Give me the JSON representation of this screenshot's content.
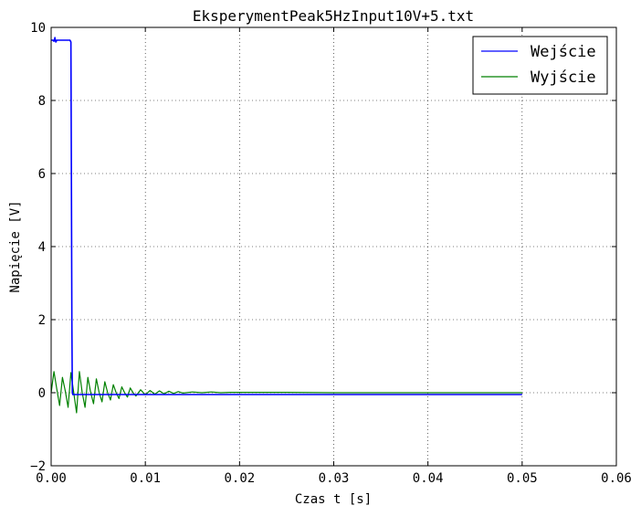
{
  "chart_data": {
    "type": "line",
    "title": "EksperymentPeak5HzInput10V+5.txt",
    "xlabel": "Czas t [s]",
    "ylabel": "Napięcie [V]",
    "xlim": [
      0,
      0.06
    ],
    "ylim": [
      -2,
      10
    ],
    "xticks": [
      "0.00",
      "0.01",
      "0.02",
      "0.03",
      "0.04",
      "0.05",
      "0.06"
    ],
    "yticks": [
      "−2",
      "0",
      "2",
      "4",
      "6",
      "8",
      "10"
    ],
    "grid": true,
    "legend_position": "top-right",
    "series": [
      {
        "name": "Wejście",
        "color": "#0000ff",
        "x": [
          0,
          0.0002,
          0.0003,
          0.0004,
          0.00045,
          0.0005,
          0.0006,
          0.0008,
          0.001,
          0.0015,
          0.002,
          0.0021,
          0.00215,
          0.0022,
          0.00225,
          0.0023,
          0.0025,
          0.01,
          0.02,
          0.03,
          0.04,
          0.05
        ],
        "y": [
          9.65,
          9.65,
          9.62,
          9.72,
          9.65,
          9.6,
          9.65,
          9.65,
          9.65,
          9.65,
          9.65,
          9.6,
          6.0,
          2.0,
          0.0,
          -0.05,
          -0.05,
          -0.05,
          -0.05,
          -0.05,
          -0.05,
          -0.05
        ]
      },
      {
        "name": "Wyjście",
        "color": "#008000",
        "x": [
          0,
          0.0003,
          0.0006,
          0.0009,
          0.0012,
          0.0015,
          0.0018,
          0.0021,
          0.0024,
          0.0027,
          0.003,
          0.0033,
          0.0036,
          0.0039,
          0.0042,
          0.0045,
          0.0048,
          0.0051,
          0.0054,
          0.0057,
          0.006,
          0.0063,
          0.0066,
          0.0069,
          0.0072,
          0.0075,
          0.0078,
          0.0081,
          0.0084,
          0.0087,
          0.009,
          0.0095,
          0.01,
          0.0105,
          0.011,
          0.0115,
          0.012,
          0.0125,
          0.013,
          0.0135,
          0.014,
          0.015,
          0.016,
          0.017,
          0.018,
          0.019,
          0.02,
          0.022,
          0.025,
          0.03,
          0.035,
          0.04,
          0.045,
          0.05
        ],
        "y": [
          0.0,
          0.58,
          0.1,
          -0.35,
          0.42,
          0.05,
          -0.4,
          0.55,
          0.0,
          -0.55,
          0.58,
          0.0,
          -0.4,
          0.42,
          0.0,
          -0.3,
          0.38,
          0.0,
          -0.25,
          0.3,
          0.0,
          -0.2,
          0.22,
          0.0,
          -0.16,
          0.16,
          0.0,
          -0.12,
          0.13,
          0.0,
          -0.09,
          0.08,
          -0.06,
          0.06,
          -0.04,
          0.05,
          -0.03,
          0.04,
          -0.02,
          0.03,
          -0.01,
          0.02,
          0.0,
          0.02,
          0.0,
          0.01,
          0.01,
          0.01,
          0.01,
          0.0,
          0.0,
          0.0,
          0.0,
          0.0
        ]
      }
    ]
  }
}
